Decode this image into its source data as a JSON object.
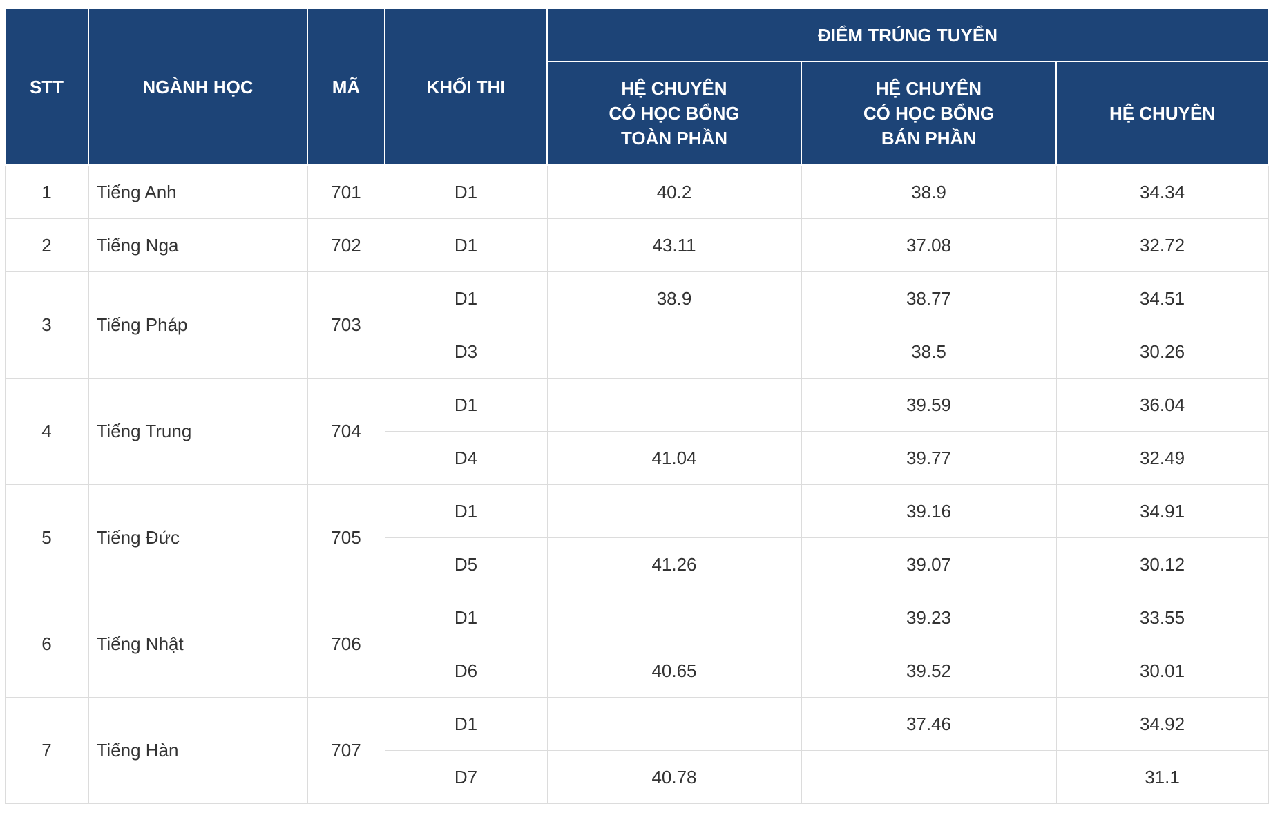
{
  "table": {
    "header": {
      "stt": "STT",
      "major": "NGÀNH HỌC",
      "code": "MÃ",
      "block": "KHỐI THI",
      "group": "ĐIỂM TRÚNG TUYỂN",
      "columns": [
        "HỆ CHUYÊN\nCÓ HỌC BỔNG\nTOÀN PHẦN",
        "HỆ CHUYÊN\nCÓ HỌC BỔNG\nBÁN PHẦN",
        "HỆ CHUYÊN"
      ]
    },
    "rows": [
      {
        "stt": "1",
        "major": "Tiếng Anh",
        "code": "701",
        "blocks": [
          {
            "block": "D1",
            "scores": [
              40.2,
              38.9,
              34.34
            ]
          }
        ]
      },
      {
        "stt": "2",
        "major": "Tiếng Nga",
        "code": "702",
        "blocks": [
          {
            "block": "D1",
            "scores": [
              43.11,
              37.08,
              32.72
            ]
          }
        ]
      },
      {
        "stt": "3",
        "major": "Tiếng Pháp",
        "code": "703",
        "blocks": [
          {
            "block": "D1",
            "scores": [
              38.9,
              38.77,
              34.51
            ]
          },
          {
            "block": "D3",
            "scores": [
              null,
              38.5,
              30.26
            ]
          }
        ]
      },
      {
        "stt": "4",
        "major": "Tiếng Trung",
        "code": "704",
        "blocks": [
          {
            "block": "D1",
            "scores": [
              null,
              39.59,
              36.04
            ]
          },
          {
            "block": "D4",
            "scores": [
              41.04,
              39.77,
              32.49
            ]
          }
        ]
      },
      {
        "stt": "5",
        "major": "Tiếng Đức",
        "code": "705",
        "blocks": [
          {
            "block": "D1",
            "scores": [
              null,
              39.16,
              34.91
            ]
          },
          {
            "block": "D5",
            "scores": [
              41.26,
              39.07,
              30.12
            ]
          }
        ]
      },
      {
        "stt": "6",
        "major": "Tiếng Nhật",
        "code": "706",
        "blocks": [
          {
            "block": "D1",
            "scores": [
              null,
              39.23,
              33.55
            ]
          },
          {
            "block": "D6",
            "scores": [
              40.65,
              39.52,
              30.01
            ]
          }
        ]
      },
      {
        "stt": "7",
        "major": "Tiếng Hàn",
        "code": "707",
        "blocks": [
          {
            "block": "D1",
            "scores": [
              null,
              37.46,
              34.92
            ]
          },
          {
            "block": "D7",
            "scores": [
              40.78,
              null,
              31.1
            ]
          }
        ]
      }
    ]
  }
}
